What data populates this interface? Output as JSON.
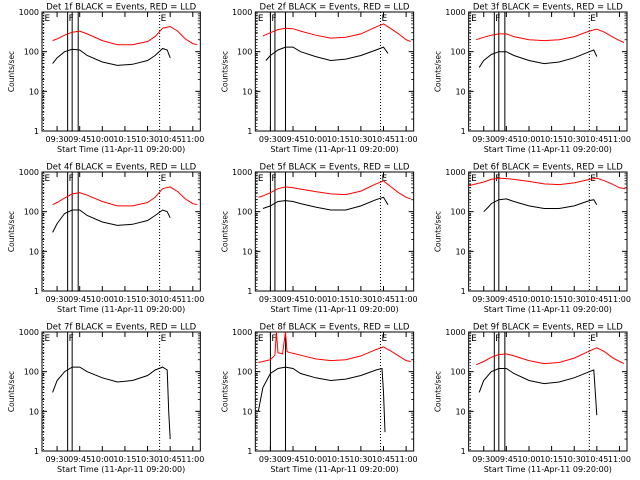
{
  "figure": {
    "xlabel": "Start Time (11-Apr-11 09:20:00)",
    "ylabel": "Counts/sec",
    "ytick_labels": [
      "1",
      "10",
      "100",
      "1000"
    ]
  },
  "chart_data": [
    {
      "type": "line",
      "title": "Det 1f BLACK = Events, RED = LLD",
      "xlabel": "Start Time (11-Apr-11 09:20:00)",
      "ylabel": "Counts/sec",
      "yscale": "log",
      "ylim": [
        1,
        1000
      ],
      "xlim": [
        "09:20",
        "11:05"
      ],
      "xticks": [
        "09:30",
        "09:45",
        "10:00",
        "10:15",
        "10:30",
        "10:45",
        "11:00"
      ],
      "markers": [
        {
          "label": "E",
          "time": "09:21"
        },
        {
          "label": "F",
          "time": "09:37"
        },
        {
          "label": "",
          "time": "09:40"
        },
        {
          "label": "",
          "time": "09:44"
        },
        {
          "label": "E",
          "time": "10:38"
        }
      ],
      "series": [
        {
          "color": "#ff0000",
          "x": [
            "09:27",
            "09:30",
            "09:35",
            "09:40",
            "09:45",
            "09:50",
            "10:00",
            "10:10",
            "10:20",
            "10:30",
            "10:35",
            "10:40",
            "10:45",
            "10:50",
            "10:55",
            "11:00",
            "11:03"
          ],
          "values": [
            190,
            210,
            260,
            310,
            330,
            280,
            190,
            150,
            150,
            180,
            240,
            390,
            430,
            330,
            210,
            160,
            150
          ]
        },
        {
          "color": "#000000",
          "x": [
            "09:27",
            "09:30",
            "09:35",
            "09:40",
            "09:45",
            "09:50",
            "10:00",
            "10:10",
            "10:20",
            "10:30",
            "10:35",
            "10:40",
            "10:43",
            "10:45"
          ],
          "values": [
            50,
            70,
            100,
            115,
            110,
            80,
            55,
            45,
            48,
            60,
            80,
            120,
            110,
            70
          ]
        }
      ]
    },
    {
      "type": "line",
      "title": "Det 2f BLACK = Events, RED = LLD",
      "xlabel": "Start Time (11-Apr-11 09:20:00)",
      "ylabel": "Counts/sec",
      "yscale": "log",
      "ylim": [
        1,
        1000
      ],
      "xlim": [
        "09:20",
        "11:05"
      ],
      "xticks": [
        "09:30",
        "09:45",
        "10:00",
        "10:15",
        "10:30",
        "10:45",
        "11:00"
      ],
      "markers": [
        {
          "label": "E",
          "time": "09:21"
        },
        {
          "label": "F",
          "time": "09:30"
        },
        {
          "label": "",
          "time": "09:33"
        },
        {
          "label": "",
          "time": "09:40"
        },
        {
          "label": "E",
          "time": "10:43"
        }
      ],
      "series": [
        {
          "color": "#ff0000",
          "x": [
            "09:25",
            "09:30",
            "09:35",
            "09:40",
            "09:45",
            "09:50",
            "10:00",
            "10:10",
            "10:20",
            "10:30",
            "10:40",
            "10:45",
            "10:50",
            "10:55",
            "11:00",
            "11:03"
          ],
          "values": [
            250,
            300,
            360,
            390,
            380,
            330,
            260,
            220,
            230,
            280,
            420,
            500,
            380,
            280,
            200,
            180
          ]
        },
        {
          "color": "#000000",
          "x": [
            "09:27",
            "09:30",
            "09:35",
            "09:40",
            "09:45",
            "09:50",
            "10:00",
            "10:10",
            "10:20",
            "10:30",
            "10:40",
            "10:45",
            "10:48"
          ],
          "values": [
            60,
            80,
            110,
            130,
            130,
            100,
            75,
            60,
            65,
            80,
            110,
            130,
            90
          ]
        }
      ]
    },
    {
      "type": "line",
      "title": "Det 3f BLACK = Events, RED = LLD",
      "xlabel": "Start Time (11-Apr-11 09:20:00)",
      "ylabel": "Counts/sec",
      "yscale": "log",
      "ylim": [
        1,
        1000
      ],
      "xlim": [
        "09:20",
        "11:05"
      ],
      "xticks": [
        "09:30",
        "09:45",
        "10:00",
        "10:15",
        "10:30",
        "10:45",
        "11:00"
      ],
      "markers": [
        {
          "label": "E",
          "time": "09:21"
        },
        {
          "label": "F",
          "time": "09:37"
        },
        {
          "label": "",
          "time": "09:40"
        },
        {
          "label": "",
          "time": "09:44"
        },
        {
          "label": "E",
          "time": "10:40"
        }
      ],
      "series": [
        {
          "color": "#ff0000",
          "x": [
            "09:25",
            "09:30",
            "09:35",
            "09:40",
            "09:45",
            "09:50",
            "10:00",
            "10:10",
            "10:20",
            "10:30",
            "10:40",
            "10:45",
            "10:50",
            "10:55",
            "11:00",
            "11:03"
          ],
          "values": [
            200,
            230,
            260,
            280,
            280,
            240,
            200,
            190,
            200,
            240,
            330,
            370,
            310,
            240,
            190,
            170
          ]
        },
        {
          "color": "#000000",
          "x": [
            "09:27",
            "09:30",
            "09:35",
            "09:40",
            "09:45",
            "09:50",
            "10:00",
            "10:10",
            "10:20",
            "10:30",
            "10:40",
            "10:43",
            "10:45"
          ],
          "values": [
            40,
            60,
            85,
            100,
            100,
            80,
            60,
            50,
            55,
            70,
            100,
            110,
            75
          ]
        }
      ]
    },
    {
      "type": "line",
      "title": "Det 4f BLACK = Events, RED = LLD",
      "xlabel": "Start Time (11-Apr-11 09:20:00)",
      "ylabel": "Counts/sec",
      "yscale": "log",
      "ylim": [
        1,
        1000
      ],
      "xlim": [
        "09:20",
        "11:05"
      ],
      "xticks": [
        "09:30",
        "09:45",
        "10:00",
        "10:15",
        "10:30",
        "10:45",
        "11:00"
      ],
      "markers": [
        {
          "label": "E",
          "time": "09:21"
        },
        {
          "label": "F",
          "time": "09:37"
        },
        {
          "label": "",
          "time": "09:40"
        },
        {
          "label": "",
          "time": "09:44"
        },
        {
          "label": "E",
          "time": "10:38"
        }
      ],
      "series": [
        {
          "color": "#ff0000",
          "x": [
            "09:27",
            "09:30",
            "09:35",
            "09:40",
            "09:45",
            "09:50",
            "10:00",
            "10:10",
            "10:20",
            "10:30",
            "10:35",
            "10:40",
            "10:45",
            "10:50",
            "10:55",
            "11:00",
            "11:03"
          ],
          "values": [
            150,
            170,
            220,
            280,
            300,
            260,
            180,
            140,
            140,
            170,
            230,
            380,
            420,
            320,
            210,
            160,
            150
          ]
        },
        {
          "color": "#000000",
          "x": [
            "09:27",
            "09:30",
            "09:35",
            "09:40",
            "09:45",
            "09:50",
            "10:00",
            "10:10",
            "10:20",
            "10:30",
            "10:35",
            "10:40",
            "10:43",
            "10:45"
          ],
          "values": [
            30,
            50,
            90,
            110,
            110,
            80,
            55,
            45,
            48,
            60,
            80,
            110,
            100,
            70
          ]
        }
      ]
    },
    {
      "type": "line",
      "title": "Det 5f BLACK = Events, RED = LLD",
      "xlabel": "Start Time (11-Apr-11 09:20:00)",
      "ylabel": "Counts/sec",
      "yscale": "log",
      "ylim": [
        1,
        1000
      ],
      "xlim": [
        "09:20",
        "11:05"
      ],
      "xticks": [
        "09:30",
        "09:45",
        "10:00",
        "10:15",
        "10:30",
        "10:45",
        "11:00"
      ],
      "markers": [
        {
          "label": "E",
          "time": "09:21"
        },
        {
          "label": "F",
          "time": "09:30"
        },
        {
          "label": "",
          "time": "09:33"
        },
        {
          "label": "",
          "time": "09:40"
        },
        {
          "label": "E",
          "time": "10:43"
        }
      ],
      "series": [
        {
          "color": "#ff0000",
          "x": [
            "09:22",
            "09:25",
            "09:30",
            "09:35",
            "09:40",
            "09:45",
            "09:50",
            "10:00",
            "10:10",
            "10:20",
            "10:30",
            "10:40",
            "10:45",
            "10:50",
            "10:55",
            "11:00",
            "11:03"
          ],
          "values": [
            230,
            250,
            300,
            380,
            420,
            400,
            370,
            320,
            280,
            270,
            330,
            500,
            600,
            420,
            300,
            230,
            210
          ]
        },
        {
          "color": "#000000",
          "x": [
            "09:25",
            "09:30",
            "09:35",
            "09:40",
            "09:45",
            "09:50",
            "10:00",
            "10:10",
            "10:20",
            "10:30",
            "10:40",
            "10:45",
            "10:48"
          ],
          "values": [
            120,
            140,
            180,
            190,
            180,
            160,
            130,
            110,
            110,
            140,
            200,
            230,
            150
          ]
        }
      ]
    },
    {
      "type": "line",
      "title": "Det 6f BLACK = Events, RED = LLD",
      "xlabel": "Start Time (11-Apr-11 09:20:00)",
      "ylabel": "Counts/sec",
      "yscale": "log",
      "ylim": [
        1,
        1000
      ],
      "xlim": [
        "09:20",
        "11:05"
      ],
      "xticks": [
        "09:30",
        "09:45",
        "10:00",
        "10:15",
        "10:30",
        "10:45",
        "11:00"
      ],
      "markers": [
        {
          "label": "E",
          "time": "09:21"
        },
        {
          "label": "F",
          "time": "09:37"
        },
        {
          "label": "",
          "time": "09:40"
        },
        {
          "label": "E",
          "time": "10:40"
        }
      ],
      "series": [
        {
          "color": "#ff0000",
          "x": [
            "09:20",
            "09:25",
            "09:30",
            "09:35",
            "09:40",
            "09:45",
            "09:50",
            "10:00",
            "10:10",
            "10:20",
            "10:30",
            "10:40",
            "10:45",
            "10:50",
            "10:55",
            "11:00",
            "11:04"
          ],
          "values": [
            450,
            500,
            560,
            650,
            700,
            680,
            650,
            580,
            500,
            480,
            530,
            650,
            700,
            600,
            500,
            400,
            380
          ]
        },
        {
          "color": "#000000",
          "x": [
            "09:30",
            "09:33",
            "09:35",
            "09:40",
            "09:45",
            "09:50",
            "10:00",
            "10:10",
            "10:20",
            "10:30",
            "10:40",
            "10:43",
            "10:45"
          ],
          "values": [
            100,
            130,
            160,
            200,
            210,
            180,
            140,
            120,
            120,
            140,
            190,
            200,
            150
          ]
        }
      ]
    },
    {
      "type": "line",
      "title": "Det 7f BLACK = Events, RED = LLD",
      "xlabel": "Start Time (11-Apr-11 09:20:00)",
      "ylabel": "Counts/sec",
      "yscale": "log",
      "ylim": [
        1,
        1000
      ],
      "xlim": [
        "09:20",
        "11:05"
      ],
      "xticks": [
        "09:30",
        "09:45",
        "10:00",
        "10:15",
        "10:30",
        "10:45",
        "11:00"
      ],
      "markers": [
        {
          "label": "E",
          "time": "09:21"
        },
        {
          "label": "F",
          "time": "09:37"
        },
        {
          "label": "",
          "time": "09:40"
        },
        {
          "label": "E",
          "time": "10:38"
        }
      ],
      "series": [
        {
          "color": "#000000",
          "x": [
            "09:27",
            "09:30",
            "09:35",
            "09:40",
            "09:45",
            "09:50",
            "10:00",
            "10:10",
            "10:20",
            "10:30",
            "10:35",
            "10:40",
            "10:43",
            "10:44",
            "10:45"
          ],
          "values": [
            30,
            60,
            100,
            130,
            130,
            100,
            70,
            55,
            60,
            80,
            110,
            130,
            110,
            10,
            2
          ]
        }
      ]
    },
    {
      "type": "line",
      "title": "Det 8f BLACK = Events, RED = LLD",
      "xlabel": "Start Time (11-Apr-11 09:20:00)",
      "ylabel": "Counts/sec",
      "yscale": "log",
      "ylim": [
        1,
        1000
      ],
      "xlim": [
        "09:20",
        "11:05"
      ],
      "xticks": [
        "09:30",
        "09:45",
        "10:00",
        "10:15",
        "10:30",
        "10:45",
        "11:00"
      ],
      "markers": [
        {
          "label": "E",
          "time": "09:21"
        },
        {
          "label": "F",
          "time": "09:30"
        },
        {
          "label": "",
          "time": "09:40"
        },
        {
          "label": "E",
          "time": "10:43"
        }
      ],
      "series": [
        {
          "color": "#ff0000",
          "x": [
            "09:22",
            "09:25",
            "09:30",
            "09:33",
            "09:34",
            "09:35",
            "09:38",
            "09:40",
            "09:41",
            "09:43",
            "09:45",
            "09:50",
            "10:00",
            "10:10",
            "10:20",
            "10:30",
            "10:40",
            "10:45",
            "10:50",
            "10:55",
            "11:00",
            "11:03"
          ],
          "values": [
            170,
            180,
            200,
            260,
            1000,
            300,
            280,
            1000,
            320,
            300,
            290,
            260,
            210,
            190,
            200,
            250,
            360,
            420,
            330,
            250,
            190,
            180
          ]
        },
        {
          "color": "#000000",
          "x": [
            "09:22",
            "09:25",
            "09:30",
            "09:35",
            "09:40",
            "09:45",
            "09:50",
            "10:00",
            "10:10",
            "10:20",
            "10:30",
            "10:40",
            "10:44",
            "10:45",
            "10:46"
          ],
          "values": [
            10,
            40,
            90,
            120,
            130,
            120,
            90,
            70,
            60,
            65,
            80,
            110,
            120,
            30,
            3
          ]
        }
      ]
    },
    {
      "type": "line",
      "title": "Det 9f BLACK = Events, RED = LLD",
      "xlabel": "Start Time (11-Apr-11 09:20:00)",
      "ylabel": "Counts/sec",
      "yscale": "log",
      "ylim": [
        1,
        1000
      ],
      "xlim": [
        "09:20",
        "11:05"
      ],
      "xticks": [
        "09:30",
        "09:45",
        "10:00",
        "10:15",
        "10:30",
        "10:45",
        "11:00"
      ],
      "markers": [
        {
          "label": "E",
          "time": "09:21"
        },
        {
          "label": "F",
          "time": "09:37"
        },
        {
          "label": "",
          "time": "09:40"
        },
        {
          "label": "",
          "time": "09:44"
        },
        {
          "label": "E",
          "time": "10:40"
        }
      ],
      "series": [
        {
          "color": "#ff0000",
          "x": [
            "09:25",
            "09:30",
            "09:35",
            "09:40",
            "09:45",
            "09:50",
            "10:00",
            "10:10",
            "10:20",
            "10:30",
            "10:40",
            "10:45",
            "10:50",
            "10:55",
            "11:00",
            "11:03"
          ],
          "values": [
            150,
            180,
            230,
            270,
            280,
            250,
            190,
            160,
            170,
            220,
            330,
            400,
            320,
            230,
            180,
            160
          ]
        },
        {
          "color": "#000000",
          "x": [
            "09:27",
            "09:30",
            "09:35",
            "09:40",
            "09:45",
            "09:50",
            "10:00",
            "10:10",
            "10:20",
            "10:30",
            "10:40",
            "10:43",
            "10:44",
            "10:45"
          ],
          "values": [
            30,
            60,
            100,
            120,
            120,
            90,
            60,
            50,
            55,
            70,
            100,
            110,
            30,
            8
          ]
        }
      ]
    }
  ]
}
